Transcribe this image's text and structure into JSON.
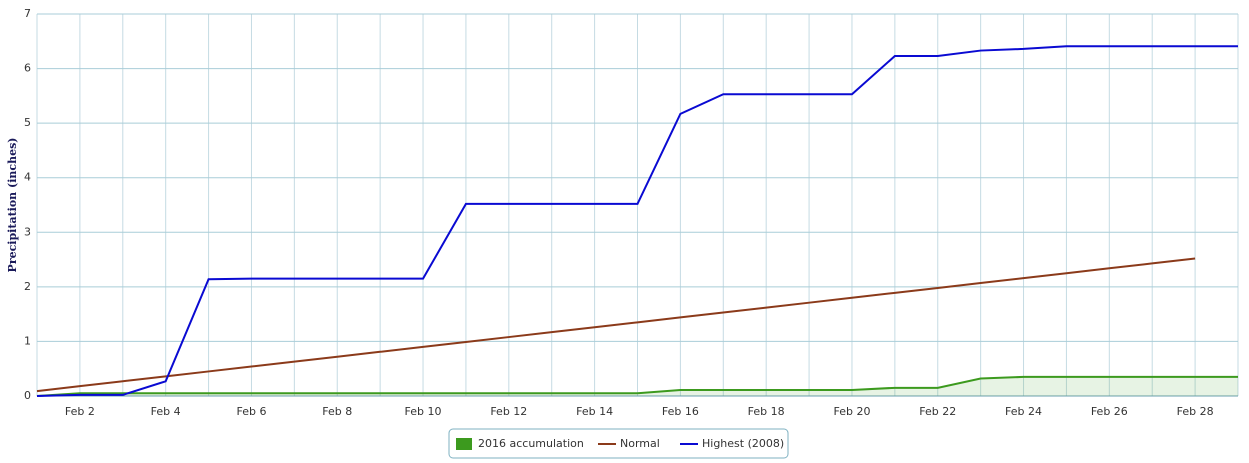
{
  "chart_data": {
    "type": "line",
    "y_label": "Precipitation (inches)",
    "categories": [
      null,
      "Feb 2",
      null,
      "Feb 4",
      null,
      "Feb 6",
      null,
      "Feb 8",
      null,
      "Feb 10",
      null,
      "Feb 12",
      null,
      "Feb 14",
      null,
      "Feb 16",
      null,
      "Feb 18",
      null,
      "Feb 20",
      null,
      "Feb 22",
      null,
      "Feb 24",
      null,
      "Feb 26",
      null,
      "Feb 28",
      null
    ],
    "ylim": [
      0,
      7
    ],
    "yticks": [
      0,
      1,
      2,
      3,
      4,
      5,
      6,
      7
    ],
    "grid": true,
    "series": [
      {
        "name": "2016 accumulation",
        "color": "#3c9a1e",
        "type": "area",
        "values": [
          0,
          0.05,
          0.05,
          0.05,
          0.05,
          0.05,
          0.05,
          0.05,
          0.05,
          0.05,
          0.05,
          0.05,
          0.05,
          0.05,
          0.05,
          0.11,
          0.11,
          0.11,
          0.11,
          0.11,
          0.15,
          0.15,
          0.32,
          0.35,
          0.35,
          0.35,
          0.35,
          0.35,
          0.35
        ]
      },
      {
        "name": "Normal",
        "color": "#8b3a1a",
        "type": "line",
        "values": [
          0.09,
          0.18,
          0.27,
          0.36,
          0.45,
          0.54,
          0.63,
          0.72,
          0.81,
          0.9,
          0.99,
          1.08,
          1.17,
          1.26,
          1.35,
          1.44,
          1.53,
          1.62,
          1.71,
          1.8,
          1.89,
          1.98,
          2.07,
          2.16,
          2.25,
          2.34,
          2.43,
          2.52,
          null
        ]
      },
      {
        "name": "Highest (2008)",
        "color": "#0a0ad2",
        "type": "line",
        "values": [
          0,
          0.02,
          0.02,
          0.27,
          2.14,
          2.15,
          2.15,
          2.15,
          2.15,
          2.15,
          3.52,
          3.52,
          3.52,
          3.52,
          3.52,
          5.17,
          5.53,
          5.53,
          5.53,
          5.53,
          6.23,
          6.23,
          6.33,
          6.36,
          6.41,
          6.41,
          6.41,
          6.41,
          6.41
        ]
      }
    ]
  }
}
